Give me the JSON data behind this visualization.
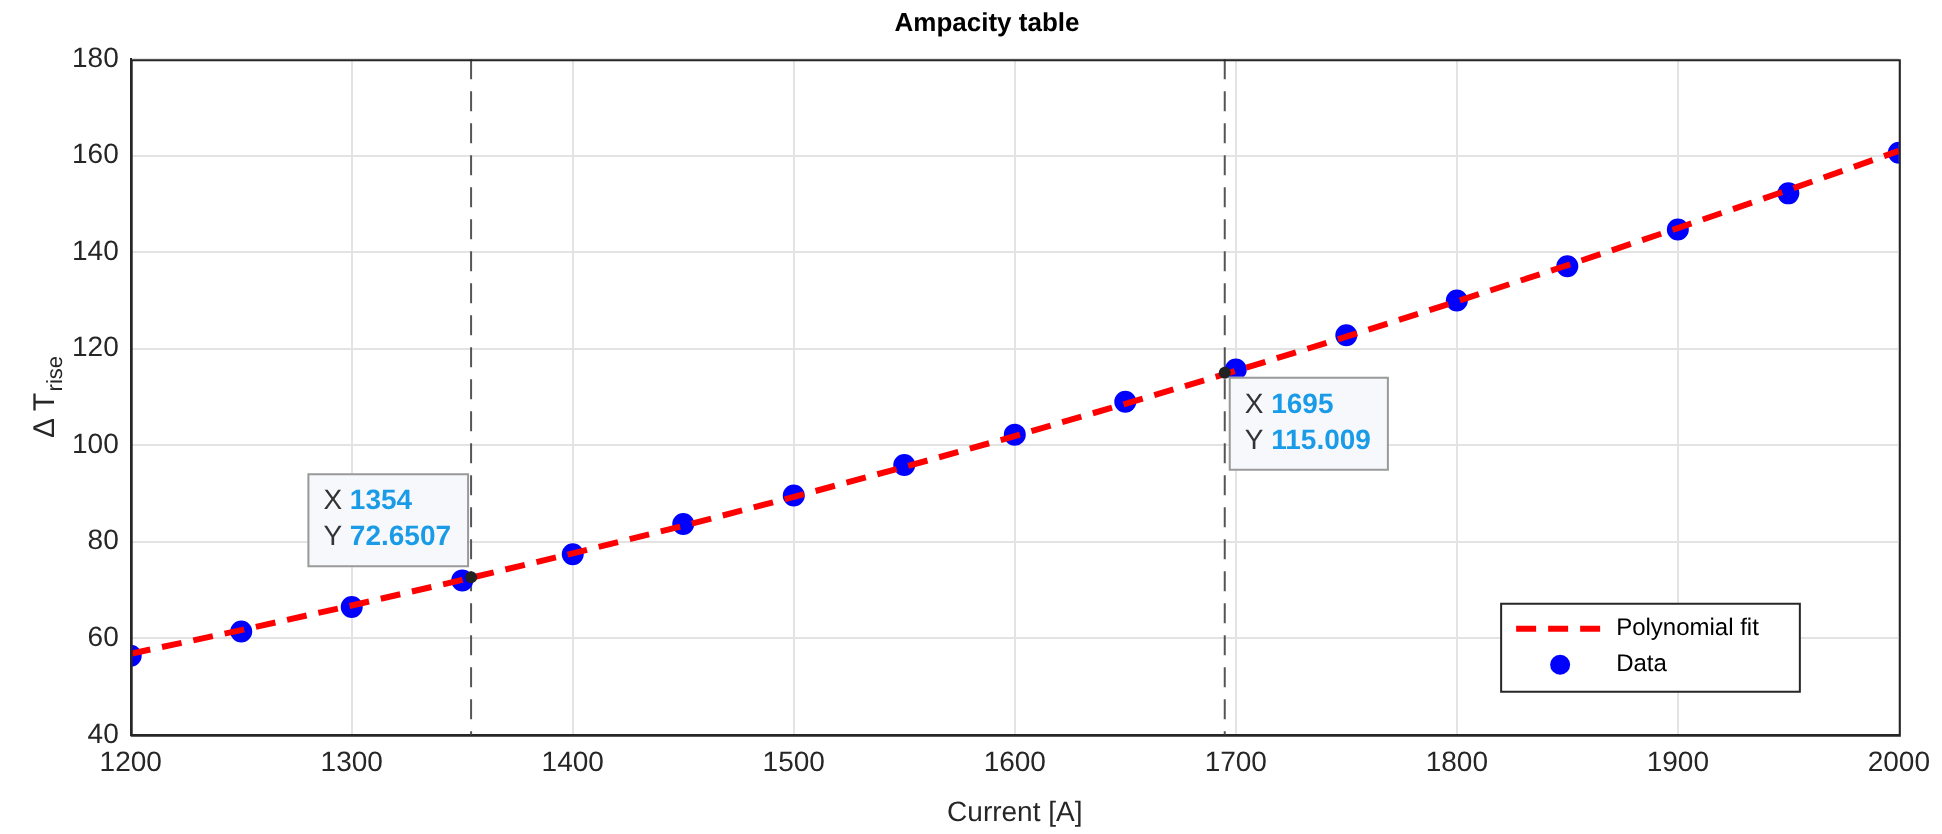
{
  "chart_data": {
    "type": "scatter",
    "title": "Ampacity table",
    "xlabel": "Current [A]",
    "ylabel": "Δ T$_{rise}$",
    "xlim": [
      1200,
      2000
    ],
    "xticks": [
      1200,
      1300,
      1400,
      1500,
      1600,
      1700,
      1800,
      1900,
      2000
    ],
    "ylim": [
      40,
      180
    ],
    "yticks": [
      40,
      60,
      80,
      100,
      120,
      140,
      160,
      180
    ],
    "grid": true,
    "legend": "bottom right",
    "series": [
      {
        "name": "Polynomial fit",
        "type": "line",
        "color": "#ff0000",
        "line_style": "dashed",
        "marker": "none",
        "x": [
          1200,
          1250,
          1300,
          1350,
          1400,
          1450,
          1500,
          1550,
          1600,
          1650,
          1700,
          1750,
          1800,
          1850,
          1900,
          1950,
          2000
        ],
        "values": [
          56.8,
          61.7,
          66.8,
          72.1,
          77.6,
          83.3,
          89.3,
          95.5,
          101.9,
          108.6,
          115.4,
          122.5,
          129.8,
          137.3,
          145.0,
          152.9,
          161.0
        ]
      },
      {
        "name": "Data",
        "type": "scatter",
        "color": "#0000ff",
        "marker": "circle",
        "x": [
          1200,
          1250,
          1300,
          1350,
          1400,
          1450,
          1500,
          1550,
          1600,
          1650,
          1700,
          1750,
          1800,
          1850,
          1900,
          1950,
          2000
        ],
        "values": [
          56.4,
          61.4,
          66.5,
          72.0,
          77.4,
          83.7,
          89.6,
          95.9,
          102.2,
          109.0,
          115.7,
          122.8,
          130.0,
          137.1,
          144.7,
          152.2,
          160.6
        ]
      }
    ],
    "ref_lines": [
      {
        "axis": "x",
        "value": 1354,
        "color": "#555555",
        "line_style": "dashed"
      },
      {
        "axis": "x",
        "value": 1695,
        "color": "#555555",
        "line_style": "dashed"
      }
    ],
    "annotations": [
      {
        "text": "X 1354\nY 72.6507",
        "x": 1354,
        "y": 72.6507
      },
      {
        "text": "X 1695\nY 115.009",
        "x": 1695,
        "y": 115.009
      }
    ]
  }
}
